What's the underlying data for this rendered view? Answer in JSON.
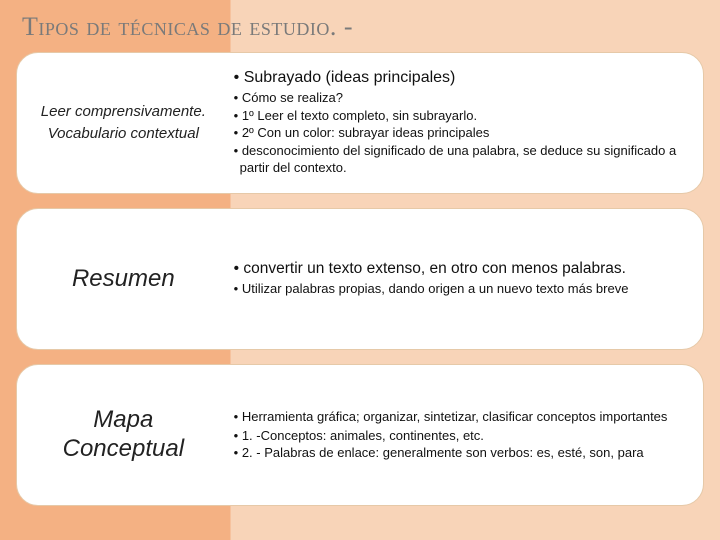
{
  "colors": {
    "bg_left": "#f4b183",
    "bg_right": "#f8d4b8",
    "card_bg": "#ffffff",
    "card_border": "#e6c9a8",
    "title_color": "#7a7a7a",
    "text_color": "#111111"
  },
  "title": "Tipos de técnicas de estudio. -",
  "rows": [
    {
      "left_line1": "Leer comprensivamente.",
      "left_line2": "Vocabulario contextual",
      "lead": "Subrayado  (ideas principales)",
      "subs": [
        "Cómo se realiza?",
        "1º Leer el texto completo, sin subrayarlo.",
        "2º Con un color: subrayar ideas principales",
        "desconocimiento del significado de una palabra, se deduce su significado a partir del contexto."
      ]
    },
    {
      "left_line1": "Resumen",
      "lead": "convertir un texto extenso, en otro con menos palabras.",
      "subs": [
        "Utilizar palabras propias, dando origen a un nuevo texto más breve"
      ]
    },
    {
      "left_line1": "Mapa",
      "left_line2": "Conceptual",
      "subs": [
        "Herramienta gráfica; organizar, sintetizar, clasificar conceptos importantes",
        "1. -Conceptos: animales, continentes, etc.",
        "2. - Palabras de enlace: generalmente son verbos: es, esté, son, para"
      ]
    }
  ]
}
